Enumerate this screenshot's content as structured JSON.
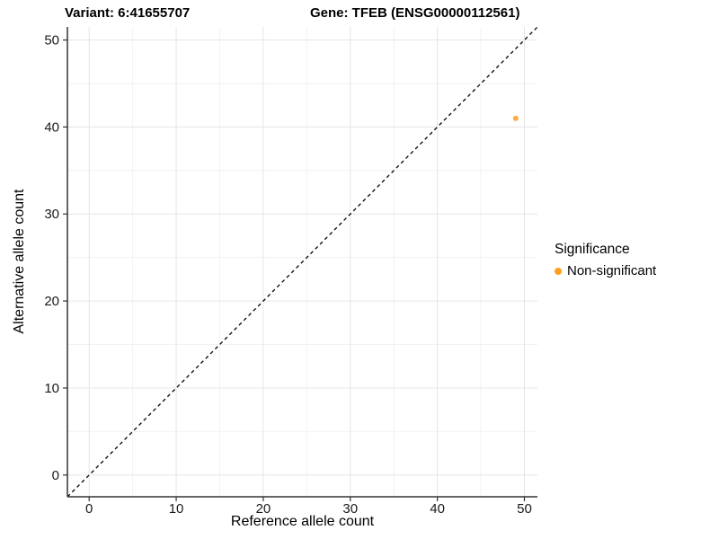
{
  "header": {
    "variant_title": "Variant: 6:41655707",
    "gene_title": "Gene: TFEB (ENSG00000112561)"
  },
  "chart_data": {
    "type": "scatter",
    "title": "Variant: 6:41655707 — Gene: TFEB (ENSG00000112561)",
    "xlabel": "Reference allele count",
    "ylabel": "Alternative allele count",
    "xlim": [
      -2.5,
      51.5
    ],
    "ylim": [
      -2.5,
      51.5
    ],
    "major_ticks": [
      0,
      10,
      20,
      30,
      40,
      50
    ],
    "minor_ticks": [
      5,
      15,
      25,
      35,
      45
    ],
    "grid": "major+minor",
    "identity_line": {
      "style": "dashed",
      "equation": "y = x",
      "x1": -2.5,
      "y1": -2.5,
      "x2": 51.5,
      "y2": 51.5
    },
    "series": [
      {
        "name": "Non-significant",
        "points": [
          {
            "x": 49,
            "y": 41
          }
        ],
        "color": "#FFA01E",
        "marker": "circle",
        "marker_radius_px": 3
      }
    ],
    "legend": {
      "title": "Significance",
      "position": "right",
      "items": [
        {
          "label": "Non-significant",
          "color": "#FFA01E",
          "marker": "circle"
        }
      ]
    },
    "colors": {
      "background": "#FFFFFF",
      "grid_major": "#E6E6E6",
      "grid_minor": "#F2F2F2",
      "axis": "#333333",
      "identity_line": "#000000",
      "tick_label": "#1a1a1a"
    }
  }
}
